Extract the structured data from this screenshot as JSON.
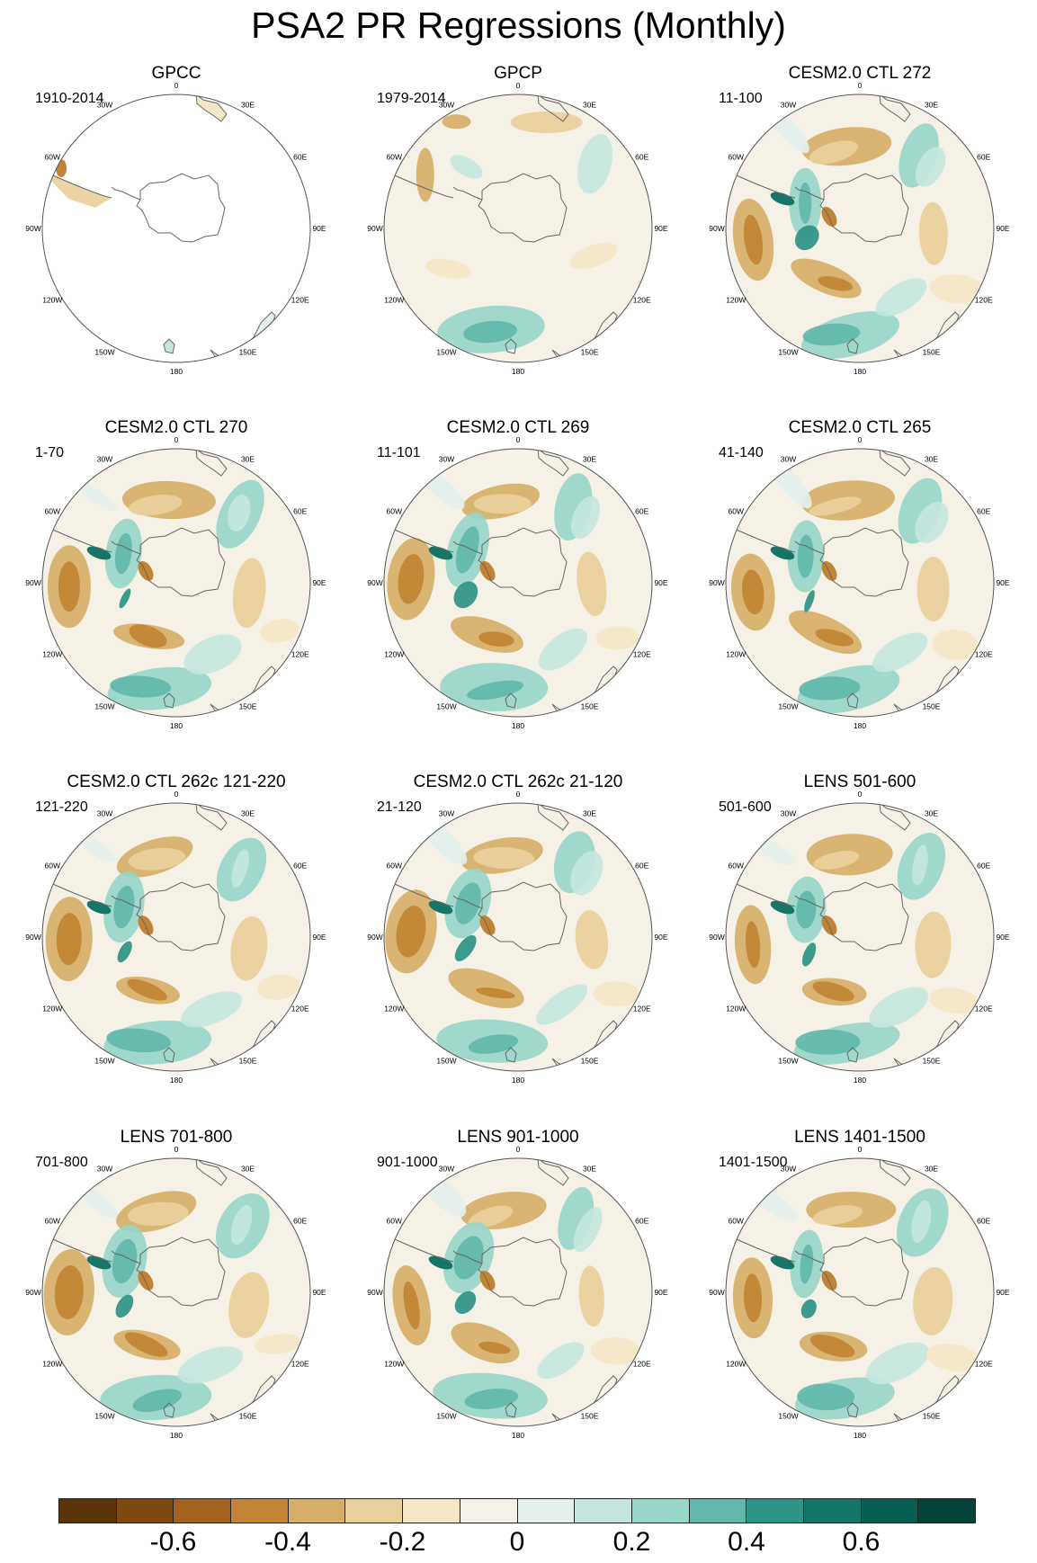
{
  "title": "PSA2 PR Regressions (Monthly)",
  "panels": [
    {
      "title": "GPCC",
      "period": "1910-2014"
    },
    {
      "title": "GPCP",
      "period": "1979-2014"
    },
    {
      "title": "CESM2.0 CTL 272",
      "period": "11-100"
    },
    {
      "title": "CESM2.0 CTL 270",
      "period": "1-70"
    },
    {
      "title": "CESM2.0 CTL 269",
      "period": "11-101"
    },
    {
      "title": "CESM2.0 CTL 265",
      "period": "41-140"
    },
    {
      "title": "CESM2.0 CTL 262c 121-220",
      "period": "121-220"
    },
    {
      "title": "CESM2.0 CTL 262c 21-120",
      "period": "21-120"
    },
    {
      "title": "LENS 501-600",
      "period": "501-600"
    },
    {
      "title": "LENS 701-800",
      "period": "701-800"
    },
    {
      "title": "LENS 901-1000",
      "period": "901-1000"
    },
    {
      "title": "LENS 1401-1500",
      "period": "1401-1500"
    }
  ],
  "longitude_labels": [
    "0",
    "30E",
    "60E",
    "90E",
    "120E",
    "150E",
    "180",
    "150W",
    "120W",
    "90W",
    "60W",
    "30W"
  ],
  "colorbar": {
    "colors": [
      "#5a3408",
      "#7f4a12",
      "#a4621f",
      "#c28434",
      "#d7af68",
      "#e9d09b",
      "#f4e7c5",
      "#f5f1e6",
      "#e3f0ee",
      "#c3e7e0",
      "#98d6ca",
      "#62b8aa",
      "#2d9486",
      "#157668",
      "#075f52",
      "#02443a"
    ],
    "tick_labels": [
      "-0.6",
      "-0.4",
      "-0.2",
      "0",
      "0.2",
      "0.4",
      "0.6"
    ]
  },
  "colors": {
    "ocean_neutral": "#f5f1e6",
    "coastline": "#666666",
    "map_border": "#555555"
  }
}
